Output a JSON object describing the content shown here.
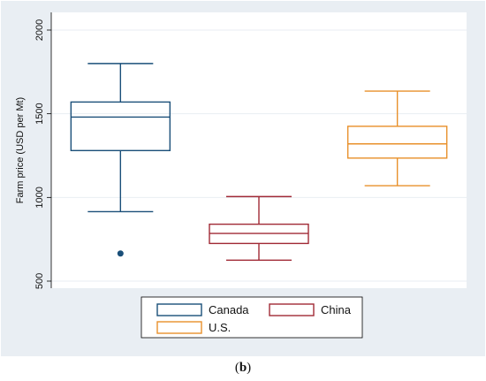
{
  "chart_data": {
    "type": "box",
    "ylabel": "Farm price (USD per Mt)",
    "ylim": [
      500,
      2000
    ],
    "yticks": [
      500,
      1000,
      1500,
      2000
    ],
    "grid": "horizontal",
    "legend_position": "bottom",
    "series": [
      {
        "name": "Canada",
        "color": "#1a4f79",
        "whisker_low": 915,
        "q1": 1280,
        "median": 1480,
        "q3": 1570,
        "whisker_high": 1800,
        "outliers": [
          665
        ]
      },
      {
        "name": "China",
        "color": "#a12a36",
        "whisker_low": 625,
        "q1": 725,
        "median": 785,
        "q3": 840,
        "whisker_high": 1005,
        "outliers": []
      },
      {
        "name": "U.S.",
        "color": "#e8902b",
        "whisker_low": 1070,
        "q1": 1235,
        "median": 1320,
        "q3": 1425,
        "whisker_high": 1635,
        "outliers": []
      }
    ]
  },
  "caption": {
    "open": "(",
    "label": "b",
    "close": ")"
  }
}
